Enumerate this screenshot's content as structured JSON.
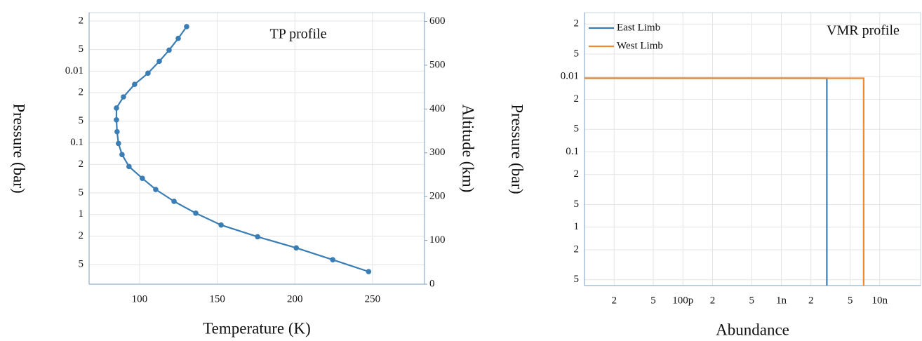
{
  "chart_data": [
    {
      "type": "line",
      "title": "TP profile",
      "xlabel": "Temperature (K)",
      "ylabel": "Pressure (bar)",
      "y2label": "Altitude (km)",
      "xlim": [
        67.5,
        283.5
      ],
      "xticks": [
        100,
        150,
        200,
        250
      ],
      "ylim": [
        0.00153,
        9.35
      ],
      "ylog": true,
      "yinvert": true,
      "yticks": [
        {
          "value": 0.002,
          "label": "2"
        },
        {
          "value": 0.005,
          "label": "5"
        },
        0.01,
        {
          "value": 0.02,
          "label": "2"
        },
        {
          "value": 0.05,
          "label": "5"
        },
        0.1,
        {
          "value": 0.2,
          "label": "2"
        },
        {
          "value": 0.5,
          "label": "5"
        },
        1,
        {
          "value": 2,
          "label": "2"
        },
        {
          "value": 5,
          "label": "5"
        }
      ],
      "y2lim": [
        0,
        620
      ],
      "y2ticks": [
        0,
        100,
        200,
        300,
        400,
        500,
        600
      ],
      "grid": true,
      "series": [
        {
          "color": "#3a7db4",
          "x": [
            130.3,
            124.9,
            119,
            112.7,
            105.4,
            96.8,
            89.6,
            85.1,
            85.1,
            85.5,
            86.4,
            88.7,
            93.2,
            101.8,
            110.4,
            122.2,
            136.2,
            152.5,
            176,
            200.9,
            224.4,
            247.5
          ],
          "values": [
            0.0024,
            0.0035,
            0.0051,
            0.0073,
            0.0107,
            0.0153,
            0.0229,
            0.0327,
            0.0478,
            0.07,
            0.102,
            0.146,
            0.214,
            0.313,
            0.447,
            0.655,
            0.957,
            1.4,
            2.04,
            2.92,
            4.27,
            6.25
          ]
        }
      ]
    },
    {
      "type": "line",
      "title": "VMR profile",
      "xlabel": "Abundance",
      "ylabel": "Pressure (bar)",
      "xlim": [
        1e-11,
        2.6e-08
      ],
      "xlog": true,
      "xticks": [
        {
          "value": 2e-11,
          "label": "2"
        },
        {
          "value": 5e-11,
          "label": "5"
        },
        {
          "value": 1e-10,
          "label": "100p"
        },
        {
          "value": 2e-10,
          "label": "2"
        },
        {
          "value": 5e-10,
          "label": "5"
        },
        {
          "value": 1e-09,
          "label": "1n"
        },
        {
          "value": 2e-09,
          "label": "2"
        },
        {
          "value": 5e-09,
          "label": "5"
        },
        {
          "value": 1e-08,
          "label": "10n"
        }
      ],
      "ylim": [
        0.00141,
        5.97
      ],
      "ylog": true,
      "yinvert": true,
      "yticks": [
        {
          "value": 0.002,
          "label": "2"
        },
        {
          "value": 0.005,
          "label": "5"
        },
        0.01,
        {
          "value": 0.02,
          "label": "2"
        },
        {
          "value": 0.05,
          "label": "5"
        },
        0.1,
        {
          "value": 0.2,
          "label": "2"
        },
        {
          "value": 0.5,
          "label": "5"
        },
        1,
        {
          "value": 2,
          "label": "2"
        },
        {
          "value": 5,
          "label": "5"
        }
      ],
      "grid": true,
      "legend": "upper left",
      "series": [
        {
          "name": "East Limb",
          "color": "#3a7db4",
          "x": [
            1e-11,
            2.9e-09,
            2.9e-09
          ],
          "values": [
            0.0105,
            0.0105,
            5.97
          ]
        },
        {
          "name": "West Limb",
          "color": "#f0882c",
          "x": [
            1e-11,
            6.86e-09,
            6.86e-09
          ],
          "values": [
            0.0105,
            0.0105,
            5.97
          ]
        }
      ]
    }
  ]
}
